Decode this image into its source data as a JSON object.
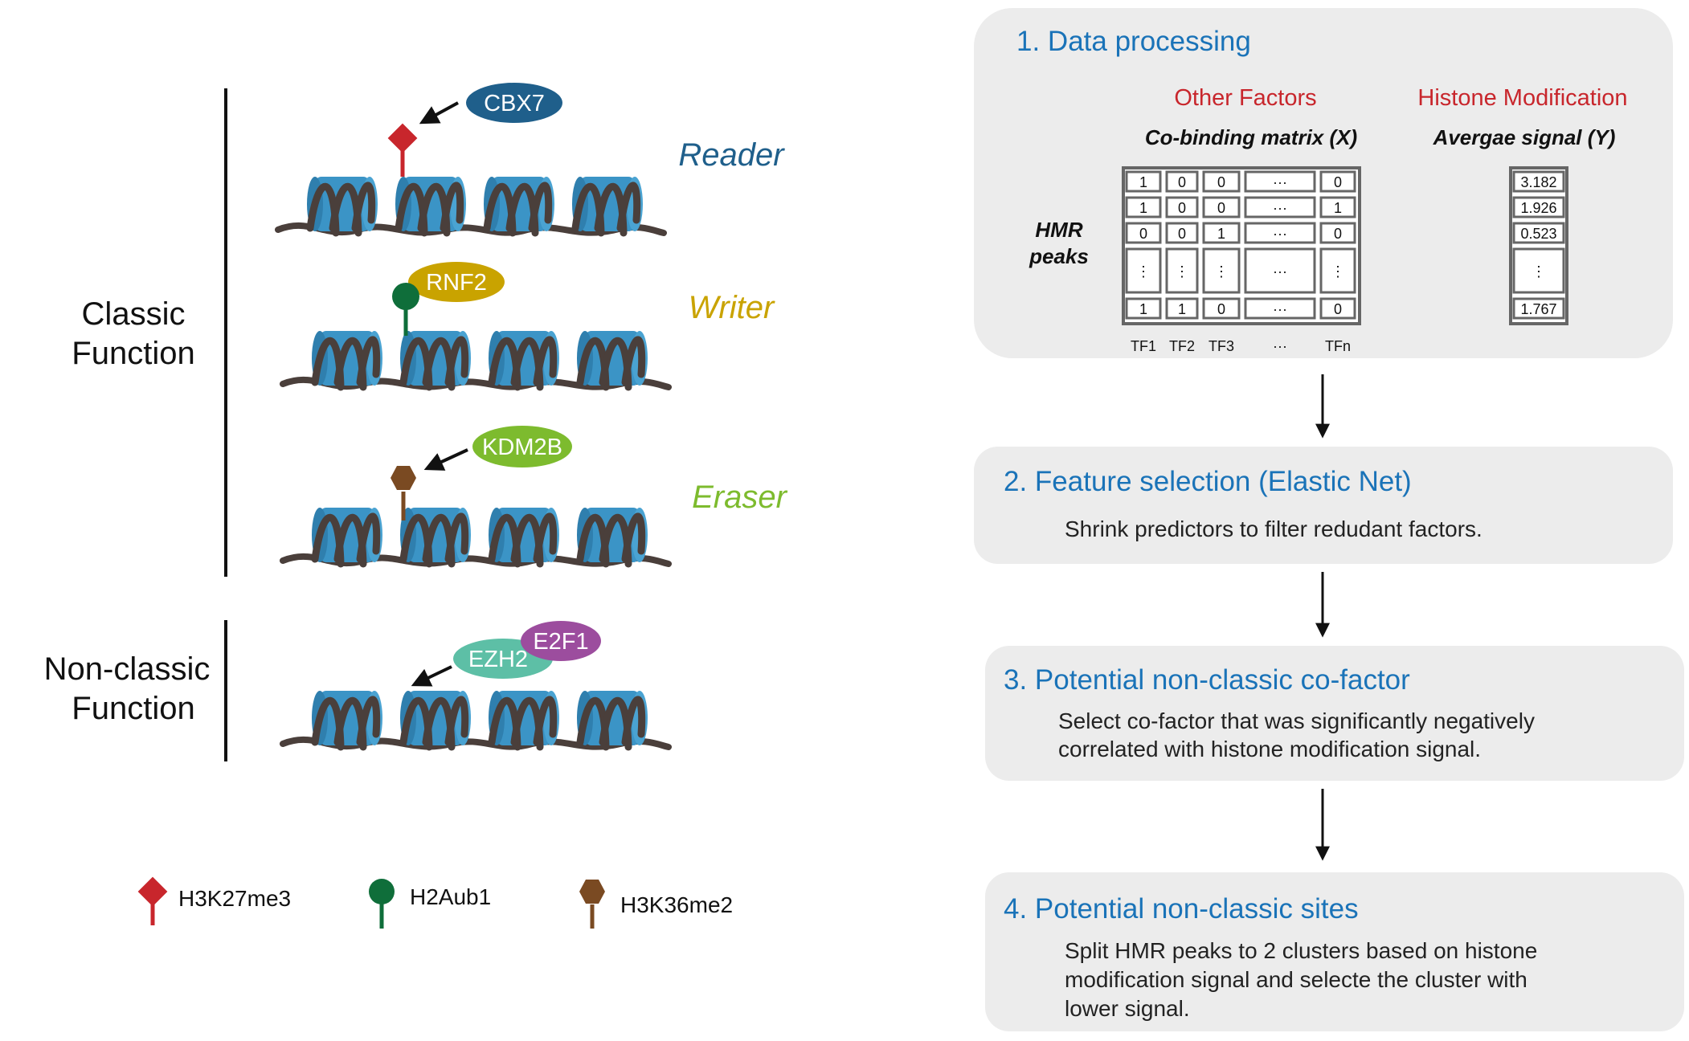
{
  "left": {
    "classic_label": [
      "Classic",
      "Function"
    ],
    "nonclassic_label": [
      "Non-classic",
      "Function"
    ],
    "roles": {
      "reader": "Reader",
      "writer": "Writer",
      "eraser": "Eraser"
    },
    "proteins": {
      "cbx7": "CBX7",
      "rnf2": "RNF2",
      "kdm2b": "KDM2B",
      "ezh2": "EZH2",
      "e2f1": "E2F1"
    },
    "legend": {
      "h3k27me3": "H3K27me3",
      "h2aub1": "H2Aub1",
      "h3k36me2": "H3K36me2"
    },
    "colors": {
      "reader": "#1f5f8b",
      "writer": "#c9a300",
      "eraser": "#7dbb2e",
      "nucleosome": "#3b94c6",
      "dna": "#4a3f3b",
      "mark_red": "#c8262c",
      "mark_green": "#0f6e3a",
      "mark_brown": "#7a4a22"
    }
  },
  "right": {
    "step1": {
      "title": "1. Data processing",
      "other_factors": "Other Factors",
      "histone_mod": "Histone Modification",
      "cobinding": "Co-binding matrix (X)",
      "avg_signal": "Avergae signal (Y)",
      "hmr": [
        "HMR",
        "peaks"
      ],
      "matrix": [
        [
          "1",
          "0",
          "0",
          "···",
          "0"
        ],
        [
          "1",
          "0",
          "0",
          "···",
          "1"
        ],
        [
          "0",
          "0",
          "1",
          "···",
          "0"
        ],
        [
          "⋮",
          "⋮",
          "⋮",
          "···",
          "⋮"
        ],
        [
          "1",
          "1",
          "0",
          "···",
          "0"
        ]
      ],
      "columns": [
        "TF1",
        "TF2",
        "TF3",
        "···",
        "TFn"
      ],
      "signal": [
        "3.182",
        "1.926",
        "0.523",
        "⋮",
        "1.767"
      ]
    },
    "step2": {
      "title": "2. Feature selection (Elastic Net)",
      "body": [
        "Shrink predictors to filter redudant factors."
      ]
    },
    "step3": {
      "title": "3. Potential non-classic co-factor",
      "body": [
        "Select co-factor that was significantly negatively",
        "correlated with histone modification signal."
      ]
    },
    "step4": {
      "title": "4. Potential non-classic sites",
      "body": [
        "Split HMR peaks to 2 clusters based on histone",
        "modification signal and selecte the cluster with",
        "lower signal."
      ]
    },
    "colors": {
      "title": "#1a73b8",
      "red": "#c8262c",
      "box": "#ececec"
    }
  }
}
